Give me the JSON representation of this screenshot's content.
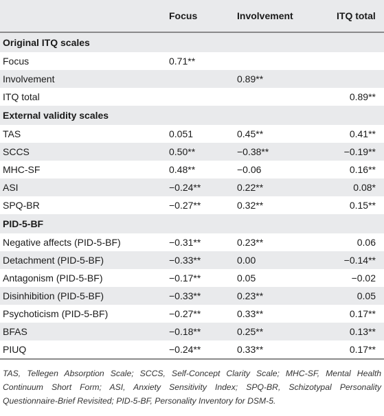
{
  "header": {
    "focus": "Focus",
    "involvement": "Involvement",
    "itq_total": "ITQ total"
  },
  "sections": [
    {
      "title": "Original ITQ scales",
      "rows": [
        {
          "label": "Focus",
          "focus": "0.71**",
          "involvement": "",
          "itq_total": ""
        },
        {
          "label": "Involvement",
          "focus": "",
          "involvement": "0.89**",
          "itq_total": ""
        },
        {
          "label": "ITQ total",
          "focus": "",
          "involvement": "",
          "itq_total": "0.89**"
        }
      ]
    },
    {
      "title": "External validity scales",
      "rows": [
        {
          "label": "TAS",
          "focus": "0.051",
          "involvement": "0.45**",
          "itq_total": "0.41**"
        },
        {
          "label": "SCCS",
          "focus": "0.50**",
          "involvement": "−0.38**",
          "itq_total": "−0.19**"
        },
        {
          "label": "MHC-SF",
          "focus": "0.48**",
          "involvement": "−0.06",
          "itq_total": "0.16**"
        },
        {
          "label": "ASI",
          "focus": "−0.24**",
          "involvement": "0.22**",
          "itq_total": "0.08*"
        },
        {
          "label": "SPQ-BR",
          "focus": "−0.27**",
          "involvement": "0.32**",
          "itq_total": "0.15**"
        }
      ]
    },
    {
      "title": "PID-5-BF",
      "rows": [
        {
          "label": "Negative affects (PID-5-BF)",
          "focus": "−0.31**",
          "involvement": "0.23**",
          "itq_total": "0.06"
        },
        {
          "label": "Detachment (PID-5-BF)",
          "focus": "−0.33**",
          "involvement": "0.00",
          "itq_total": "−0.14**"
        },
        {
          "label": "Antagonism (PID-5-BF)",
          "focus": "−0.17**",
          "involvement": "0.05",
          "itq_total": "−0.02"
        },
        {
          "label": "Disinhibition (PID-5-BF)",
          "focus": "−0.33**",
          "involvement": "0.23**",
          "itq_total": "0.05"
        },
        {
          "label": "Psychoticism (PID-5-BF)",
          "focus": "−0.27**",
          "involvement": "0.33**",
          "itq_total": "0.17**"
        },
        {
          "label": "BFAS",
          "focus": "−0.18**",
          "involvement": "0.25**",
          "itq_total": "0.13**"
        },
        {
          "label": "PIUQ",
          "focus": "−0.24**",
          "involvement": "0.33**",
          "itq_total": "0.17**"
        }
      ]
    }
  ],
  "footnote": "TAS, Tellegen Absorption Scale; SCCS, Self-Concept Clarity Scale; MHC-SF, Mental Health Continuum Short Form; ASI, Anxiety Sensitivity Index; SPQ-BR, Schizotypal Personality Questionnaire-Brief Revisited; PID-5-BF, Personality Inventory for DSM-5."
}
